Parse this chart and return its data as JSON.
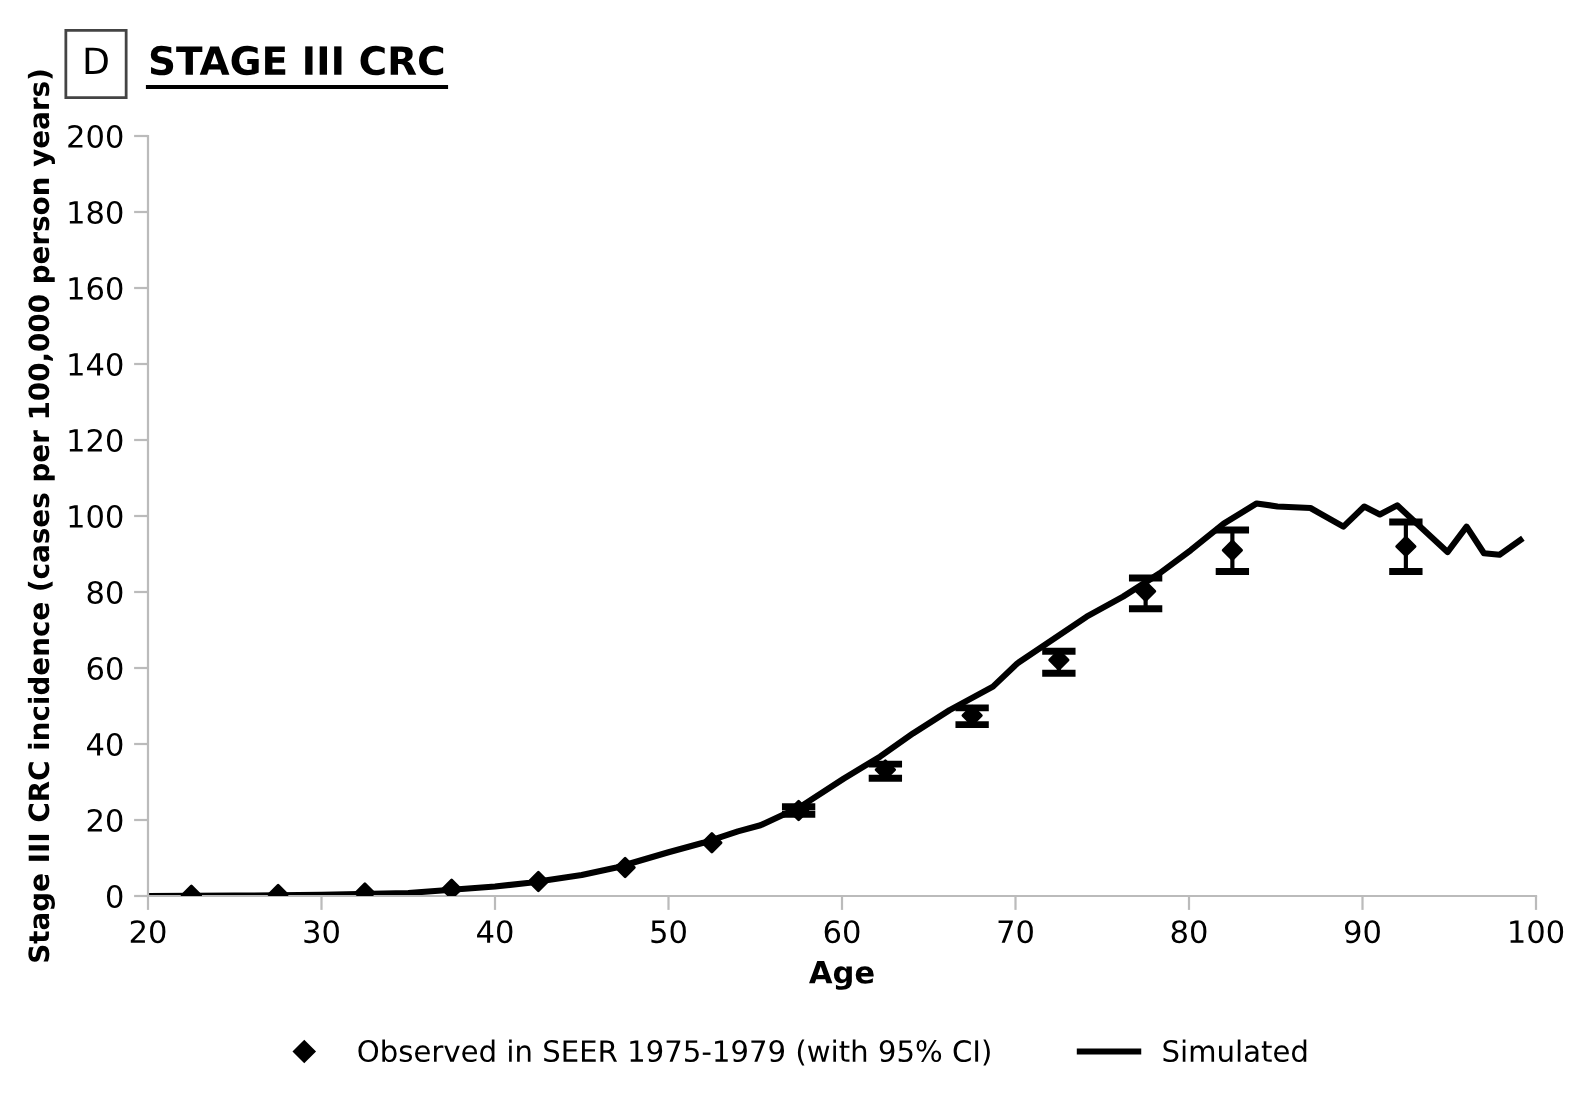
{
  "chart_data": {
    "type": "line",
    "title": "STAGE III CRC",
    "annotations": [
      "D"
    ],
    "xlabel": "Age",
    "ylabel": "Stage III CRC incidence (cases per 100,000 person years)",
    "xlim": [
      20,
      100
    ],
    "xticks": [
      20,
      30,
      40,
      50,
      60,
      70,
      80,
      90,
      100
    ],
    "ylim": [
      0,
      200
    ],
    "yticks": [
      0,
      20,
      40,
      60,
      80,
      100,
      120,
      140,
      160,
      180,
      200
    ],
    "grid": false,
    "legend": "bottom",
    "series": [
      {
        "name": "Observed in SEER 1975-1979 (with 95% CI)",
        "type": "scatter",
        "marker": "diamond",
        "color": "#000000",
        "x": [
          22.5,
          27.5,
          32.5,
          37.5,
          42.5,
          47.5,
          52.5,
          57.5,
          62.5,
          67.5,
          72.5,
          77.5,
          82.5,
          92.5
        ],
        "values": [
          0.2,
          0.4,
          0.8,
          1.8,
          3.8,
          7.5,
          14,
          22.5,
          33.2,
          47.5,
          62.1,
          80.2,
          91,
          92
        ],
        "errors": [
          null,
          null,
          null,
          null,
          null,
          null,
          null,
          [
            21.5,
            23.5
          ],
          [
            31,
            34.7
          ],
          [
            45.1,
            49.5
          ],
          [
            58.6,
            64.4
          ],
          [
            75.6,
            83.7
          ],
          [
            85.4,
            96.3
          ],
          [
            85.4,
            98.4
          ]
        ]
      },
      {
        "name": "Simulated",
        "color": "#000000",
        "line_style": "solid",
        "x": [
          20,
          25,
          30,
          35,
          40,
          42,
          45,
          47,
          50,
          52,
          54,
          55.3,
          57.6,
          60.1,
          62.2,
          64.1,
          66.2,
          68.7,
          70.1,
          74.1,
          76.2,
          78.3,
          80.1,
          82,
          83.9,
          85.1,
          87,
          88.9,
          90.1,
          91,
          92,
          94.9,
          96,
          97,
          97.9,
          99.1
        ],
        "values": [
          0,
          0.1,
          0.3,
          0.8,
          2.5,
          3.5,
          5.5,
          7.5,
          11.5,
          14,
          17,
          18.6,
          23.5,
          30.9,
          36.7,
          42.8,
          48.9,
          55.1,
          61.2,
          73.5,
          78.8,
          84.9,
          91,
          98,
          103.3,
          102.5,
          102.1,
          97.2,
          102.5,
          100.4,
          102.8,
          90.5,
          97.2,
          90.2,
          89.8,
          93.7
        ]
      }
    ]
  }
}
